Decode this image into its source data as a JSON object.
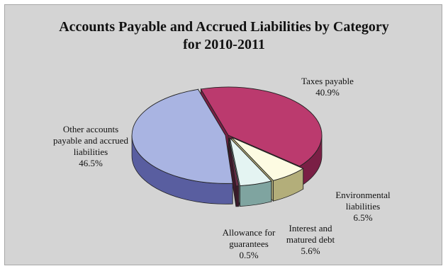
{
  "chart_data": {
    "type": "pie",
    "style": "3d-exploded",
    "title_lines": [
      "Accounts Payable and Accrued Liabilities by Category",
      "for 2010-2011"
    ],
    "slices": [
      {
        "label_lines": [
          "Taxes payable"
        ],
        "value": 40.9,
        "value_text": "40.9%",
        "color": "#bb3a6e",
        "side_color": "#7a1f45"
      },
      {
        "label_lines": [
          "Environmental",
          "liabilities"
        ],
        "value": 6.5,
        "value_text": "6.5%",
        "color": "#fdfbe2",
        "side_color": "#b3ae7a"
      },
      {
        "label_lines": [
          "Interest and",
          "matured debt"
        ],
        "value": 5.6,
        "value_text": "5.6%",
        "color": "#e4f4f2",
        "side_color": "#7fa4a0"
      },
      {
        "label_lines": [
          "Allowance for",
          "guarantees"
        ],
        "value": 0.5,
        "value_text": "0.5%",
        "color": "#6a2e48",
        "side_color": "#3e1a2b"
      },
      {
        "label_lines": [
          "Other accounts",
          "payable and accrued",
          "liabilities"
        ],
        "value": 46.5,
        "value_text": "46.5%",
        "color": "#a9b4e2",
        "side_color": "#595ea0"
      }
    ],
    "background_color": "#d4d4d4"
  }
}
